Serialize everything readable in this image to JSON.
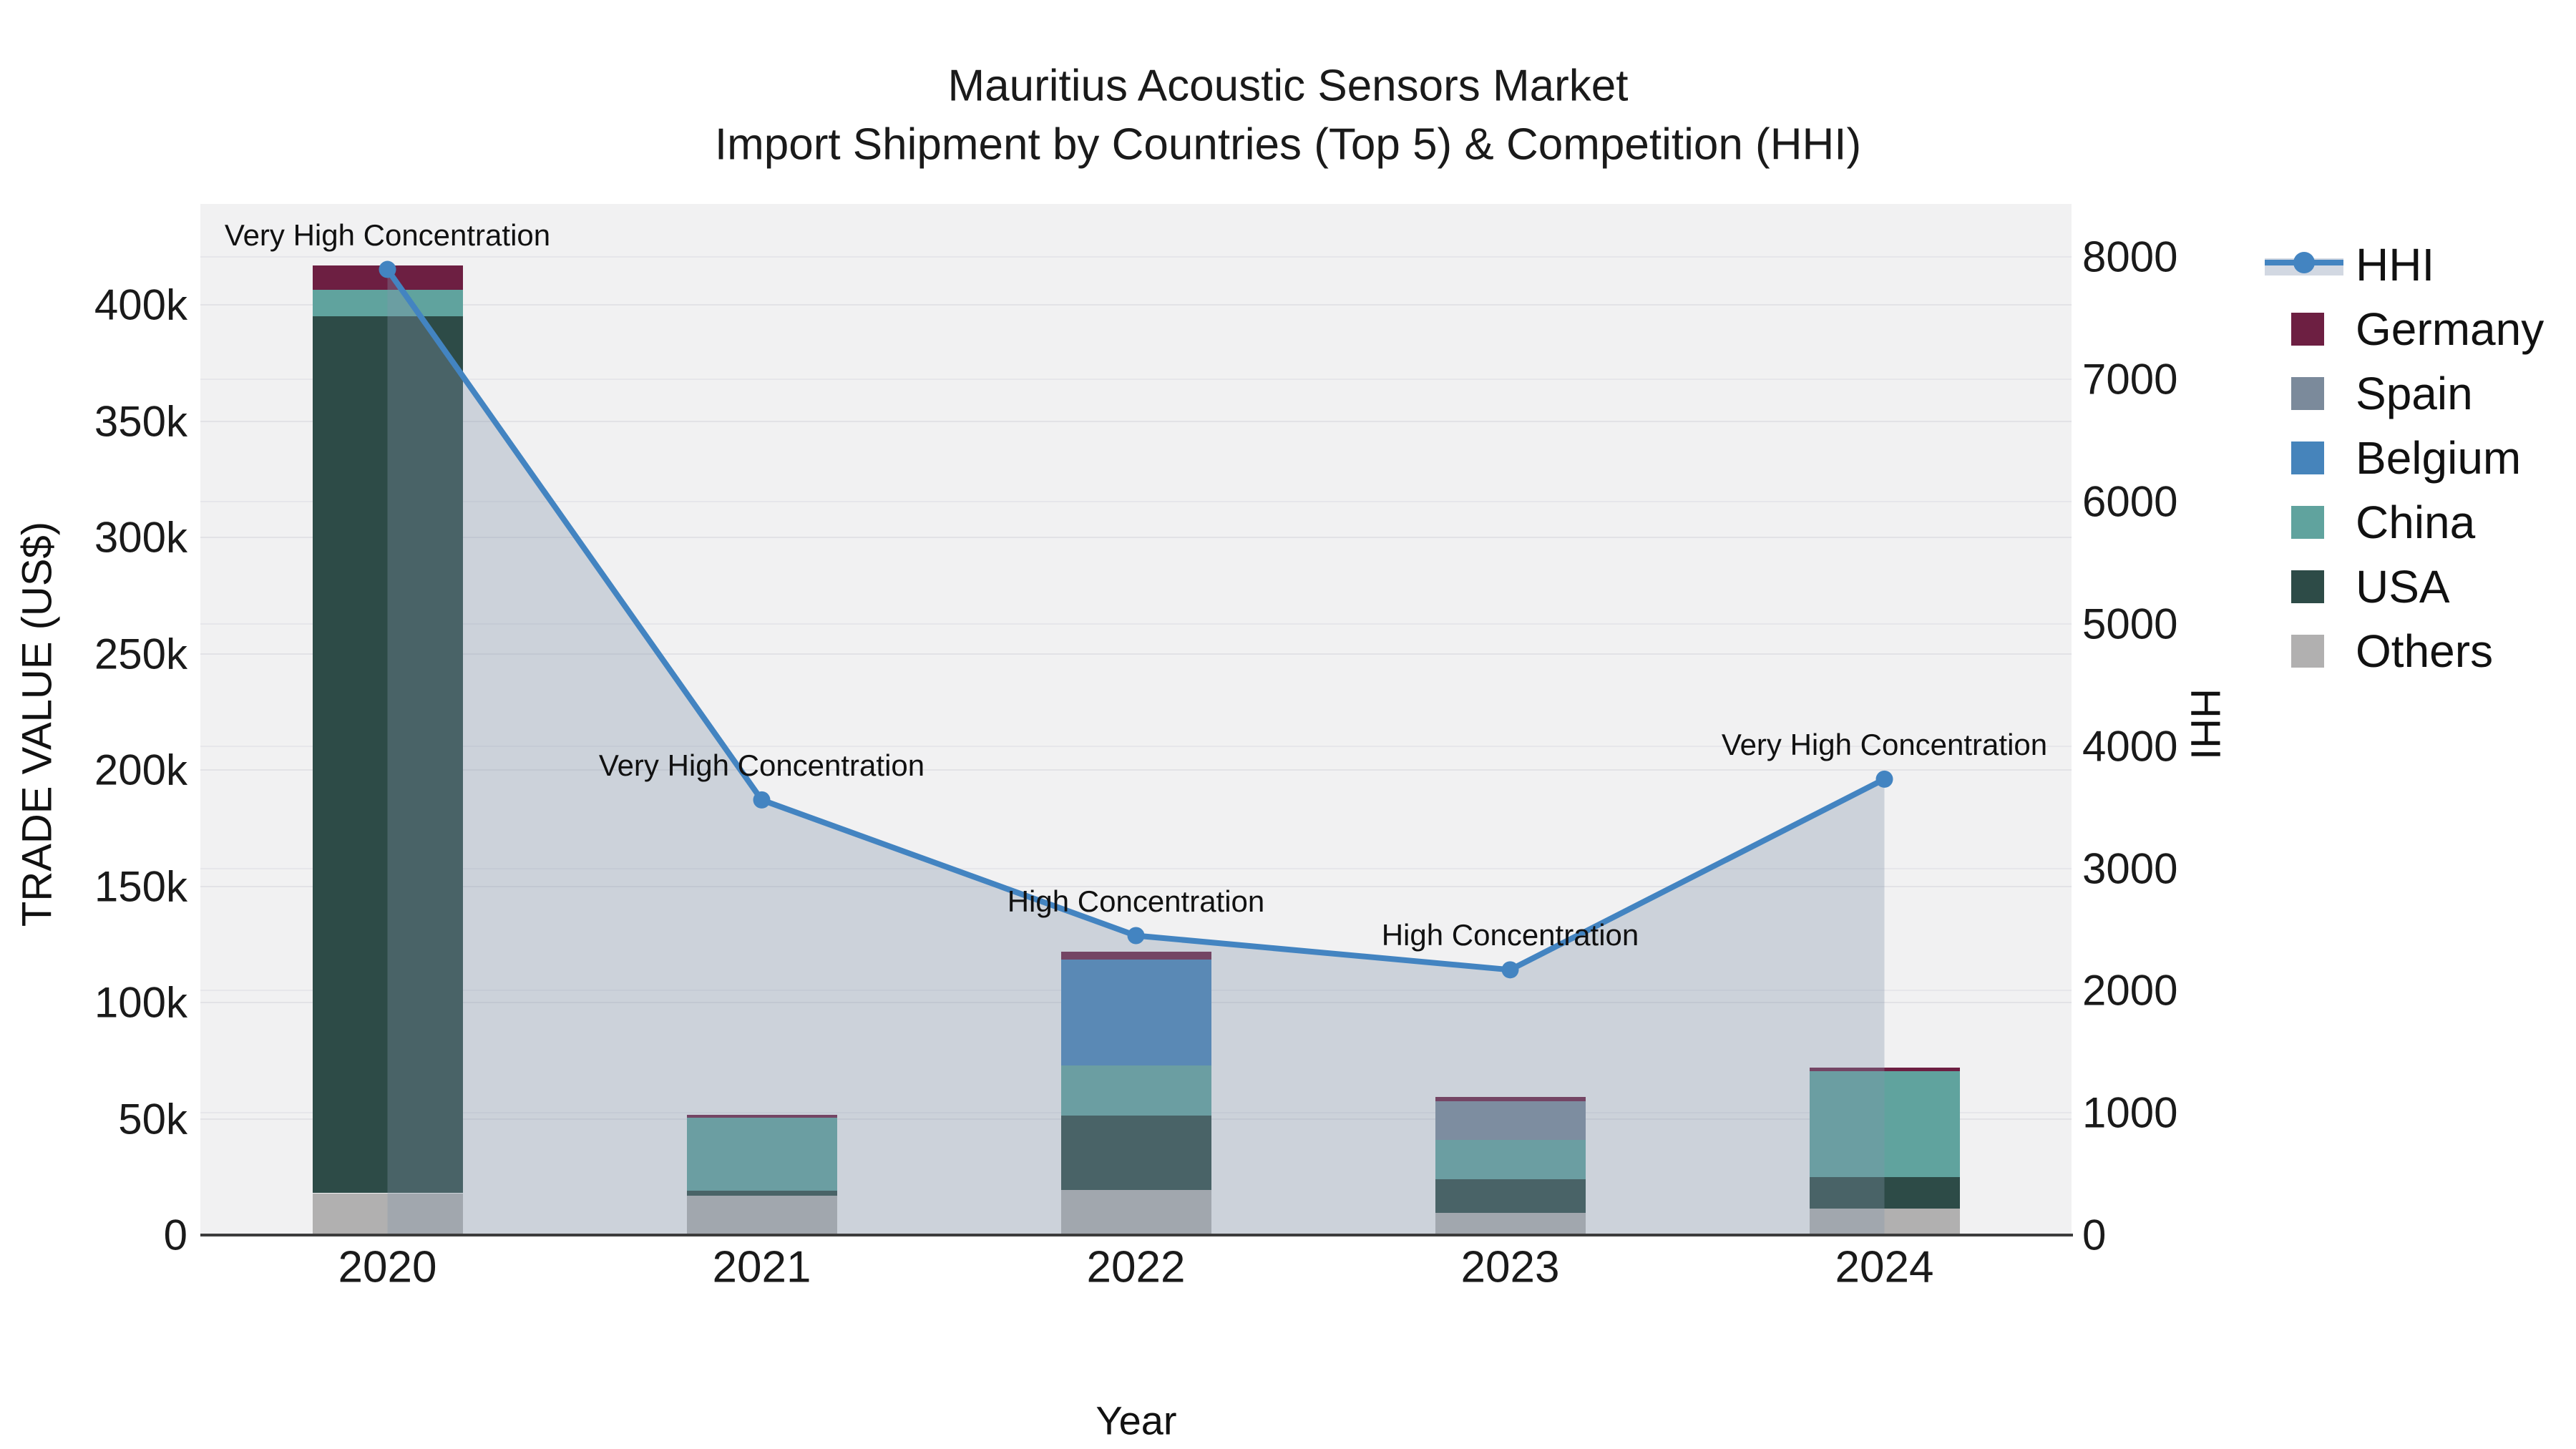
{
  "title": {
    "line1": "Mauritius Acoustic Sensors Market",
    "line2": "Import Shipment by Countries (Top 5) & Competition (HHI)"
  },
  "axes": {
    "x_label": "Year",
    "y_left_label": "TRADE VALUE (US$)",
    "y_right_label": "HHI",
    "y_left_ticks": [
      {
        "label": "0",
        "value": 0
      },
      {
        "label": "50k",
        "value": 50000
      },
      {
        "label": "100k",
        "value": 100000
      },
      {
        "label": "150k",
        "value": 150000
      },
      {
        "label": "200k",
        "value": 200000
      },
      {
        "label": "250k",
        "value": 250000
      },
      {
        "label": "300k",
        "value": 300000
      },
      {
        "label": "350k",
        "value": 350000
      },
      {
        "label": "400k",
        "value": 400000
      }
    ],
    "y_right_ticks": [
      {
        "label": "0",
        "value": 0
      },
      {
        "label": "1000",
        "value": 1000
      },
      {
        "label": "2000",
        "value": 2000
      },
      {
        "label": "3000",
        "value": 3000
      },
      {
        "label": "4000",
        "value": 4000
      },
      {
        "label": "5000",
        "value": 5000
      },
      {
        "label": "6000",
        "value": 6000
      },
      {
        "label": "7000",
        "value": 7000
      },
      {
        "label": "8000",
        "value": 8000
      }
    ],
    "x_ticks": [
      "2020",
      "2021",
      "2022",
      "2023",
      "2024"
    ]
  },
  "legend": [
    {
      "label": "HHI",
      "type": "line",
      "color": "#4384c1",
      "band_color": "#d2d8e2"
    },
    {
      "label": "Germany",
      "type": "box",
      "color": "#6d1f42"
    },
    {
      "label": "Spain",
      "type": "box",
      "color": "#7b8a9b"
    },
    {
      "label": "Belgium",
      "type": "box",
      "color": "#4684bb"
    },
    {
      "label": "China",
      "type": "box",
      "color": "#60a39e"
    },
    {
      "label": "USA",
      "type": "box",
      "color": "#2d4b47"
    },
    {
      "label": "Others",
      "type": "box",
      "color": "#b1b0b0"
    }
  ],
  "chart_data": {
    "type": "bar",
    "subtype": "stacked-bars-with-line",
    "title": "Mauritius Acoustic Sensors Market — Import Shipment by Countries (Top 5) & Competition (HHI)",
    "xlabel": "Year",
    "ylabel_left": "TRADE VALUE (US$)",
    "ylabel_right": "HHI",
    "categories": [
      "2020",
      "2021",
      "2022",
      "2023",
      "2024"
    ],
    "series": [
      {
        "name": "Germany",
        "axis": "left",
        "color": "#6d1f42",
        "values": [
          10500,
          1200,
          3500,
          2000,
          1500
        ]
      },
      {
        "name": "Spain",
        "axis": "left",
        "color": "#7b8a9b",
        "values": [
          0,
          0,
          0,
          16500,
          0
        ]
      },
      {
        "name": "Belgium",
        "axis": "left",
        "color": "#4684bb",
        "values": [
          0,
          0,
          45500,
          0,
          0
        ]
      },
      {
        "name": "China",
        "axis": "left",
        "color": "#60a39e",
        "values": [
          11500,
          31500,
          21500,
          17000,
          45500
        ]
      },
      {
        "name": "USA",
        "axis": "left",
        "color": "#2d4b47",
        "values": [
          377000,
          2000,
          32000,
          14500,
          13500
        ]
      },
      {
        "name": "Others",
        "axis": "left",
        "color": "#b1b0b0",
        "values": [
          18000,
          17000,
          19500,
          9500,
          11500
        ]
      }
    ],
    "stack_order_bottom_to_top": [
      "Others",
      "USA",
      "China",
      "Belgium",
      "Spain",
      "Germany"
    ],
    "bar_totals": [
      417000,
      51700,
      122000,
      59500,
      72000
    ],
    "line_series": {
      "name": "HHI",
      "axis": "right",
      "color": "#4384c1",
      "area_fill": "rgba(131,148,171,0.33)",
      "values": [
        7900,
        3560,
        2450,
        2170,
        3730
      ]
    },
    "annotations": [
      {
        "category": "2020",
        "text": "Very High Concentration"
      },
      {
        "category": "2021",
        "text": "Very High Concentration"
      },
      {
        "category": "2022",
        "text": "High Concentration"
      },
      {
        "category": "2023",
        "text": "High Concentration"
      },
      {
        "category": "2024",
        "text": "Very High Concentration"
      }
    ],
    "ylim_left": [
      0,
      443400
    ],
    "ylim_right": [
      0,
      8436
    ],
    "grid": true,
    "legend_position": "right",
    "plot_background": "#f1f1f2"
  },
  "colors": {
    "plot_bg": "#f1f1f2",
    "grid": "#e2e2e6",
    "axis_line": "#3c3c3c",
    "hhi_line": "#4384c1",
    "hhi_area": "rgba(131,148,171,0.33)",
    "text": "#1a1a1a"
  }
}
